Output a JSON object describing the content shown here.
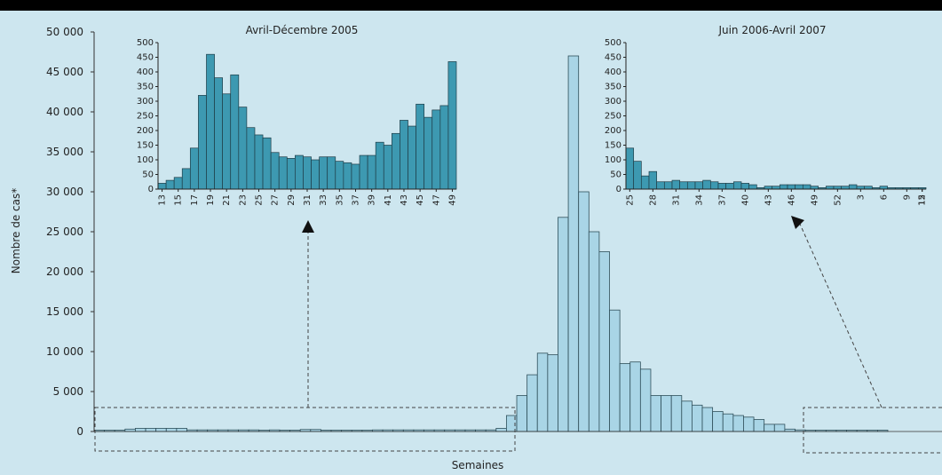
{
  "chart_data": [
    {
      "type": "bar",
      "ylabel": "Nombre de cas*",
      "xlabel": "Semaines",
      "ylim": [
        0,
        50000
      ],
      "yticks": [
        "50 000",
        "45 000",
        "40 000",
        "35 000",
        "30 000",
        "25 000",
        "20 000",
        "15 000",
        "10 000",
        "5 000",
        "0"
      ],
      "values": [
        0,
        0,
        0,
        300,
        400,
        400,
        400,
        400,
        400,
        200,
        200,
        200,
        200,
        200,
        200,
        200,
        0,
        200,
        0,
        0,
        250,
        250,
        0,
        0,
        0,
        0,
        0,
        200,
        200,
        200,
        200,
        200,
        200,
        200,
        200,
        200,
        200,
        200,
        200,
        400,
        2000,
        4500,
        7100,
        9800,
        9600,
        26800,
        47000,
        30000,
        25000,
        22500,
        15200,
        8500,
        8700,
        7800,
        4500,
        4500,
        4500,
        3800,
        3300,
        3000,
        2500,
        2200,
        2000,
        1800,
        1500,
        900,
        900,
        300,
        200,
        100,
        100,
        100,
        100,
        100,
        100,
        100,
        100
      ],
      "bar_color": "#a9d5e6",
      "background": "#cde6ef",
      "annotation_boxes": [
        "Avril-Décembre 2005",
        "Juin 2006-Avril 2007"
      ],
      "grid": false
    },
    {
      "type": "bar",
      "title": "Avril-Décembre 2005",
      "ylim": [
        0,
        500
      ],
      "yticks": [
        "500",
        "450",
        "400",
        "350",
        "300",
        "250",
        "200",
        "150",
        "100",
        "50",
        "0"
      ],
      "xtick_labels": [
        "13",
        "15",
        "17",
        "19",
        "21",
        "23",
        "25",
        "27",
        "29",
        "31",
        "33",
        "35",
        "37",
        "39",
        "41",
        "43",
        "45",
        "47",
        "49"
      ],
      "values": [
        20,
        30,
        40,
        70,
        140,
        320,
        460,
        380,
        325,
        390,
        280,
        210,
        185,
        175,
        125,
        110,
        105,
        115,
        110,
        100,
        110,
        110,
        95,
        90,
        85,
        115,
        115,
        160,
        150,
        190,
        235,
        215,
        290,
        245,
        270,
        285,
        435
      ],
      "bar_color": "#3d99b1"
    },
    {
      "type": "bar",
      "title": "Juin 2006-Avril 2007",
      "ylim": [
        0,
        500
      ],
      "yticks": [
        "500",
        "450",
        "400",
        "350",
        "300",
        "250",
        "200",
        "150",
        "100",
        "50",
        "0"
      ],
      "xtick_labels": [
        "25",
        "28",
        "31",
        "34",
        "37",
        "40",
        "43",
        "46",
        "49",
        "52",
        "3",
        "6",
        "9",
        "12",
        "15"
      ],
      "values": [
        140,
        95,
        45,
        60,
        25,
        25,
        30,
        25,
        25,
        25,
        30,
        25,
        20,
        20,
        25,
        20,
        15,
        5,
        10,
        10,
        15,
        15,
        15,
        15,
        10,
        5,
        10,
        10,
        10,
        15,
        10,
        10,
        5,
        10,
        5,
        5,
        5,
        5,
        5
      ],
      "bar_color": "#3d99b1"
    }
  ]
}
